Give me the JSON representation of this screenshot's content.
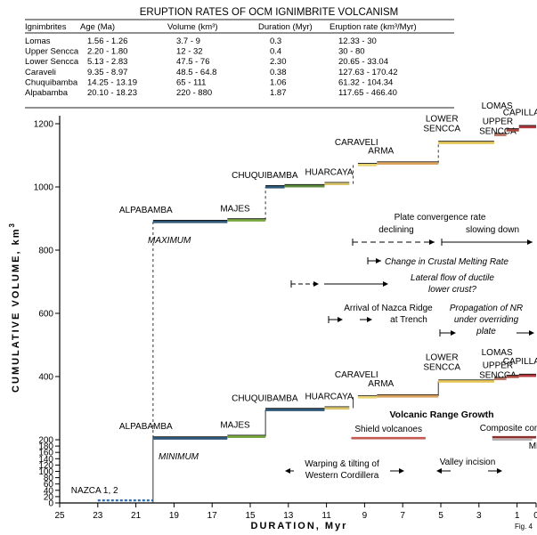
{
  "table": {
    "title": "ERUPTION RATES OF OCM IGNIMBRITE VOLCANISM",
    "headers": [
      "Ignimbrites",
      "Age (Ma)",
      "Volume (km³)",
      "Duration (Myr)",
      "Eruption rate (km³/Myr)"
    ],
    "rows": [
      [
        "Lomas",
        "1.56 - 1.26",
        "3.7 - 9",
        "0.3",
        "12.33 - 30"
      ],
      [
        "Upper Sencca",
        "2.20 - 1.80",
        "12 - 32",
        "0.4",
        "30 - 80"
      ],
      [
        "Lower Sencca",
        "5.13 - 2.83",
        "47.5 - 76",
        "2.30",
        "20.65 - 33.04"
      ],
      [
        "Caraveli",
        "9.35 - 8.97",
        "48.5 - 64.8",
        "0.38",
        "127.63 - 170.42"
      ],
      [
        "Chuquibamba",
        "14.25 - 13.19",
        "65 - 111",
        "1.06",
        "61.32 - 104.34"
      ],
      [
        "Alpabamba",
        "20.10 - 18.23",
        "220 - 880",
        "1.87",
        "117.65 - 466.40"
      ]
    ]
  },
  "chart_data": {
    "type": "line",
    "xlabel": "DURATION, Myr",
    "ylabel": "CUMULATIVE  VOLUME, km",
    "ylabel_sup": "3",
    "xlim": [
      25,
      0
    ],
    "ylim": [
      0,
      1230
    ],
    "x_ticks": [
      25,
      23,
      21,
      19,
      17,
      15,
      13,
      11,
      9,
      7,
      5,
      3,
      1,
      0
    ],
    "y_ticks": [
      0,
      20,
      40,
      60,
      80,
      100,
      120,
      140,
      160,
      180,
      200,
      400,
      600,
      800,
      1000,
      1200
    ],
    "y_scale_note": "axis is expanded below 200 (20 per tick) and compressed above 200 (200 per tick)",
    "series": [
      {
        "name": "MAXIMUM",
        "steps": [
          {
            "x0": 20.1,
            "x1": 16.2,
            "y": 890,
            "color": "#2e5778",
            "label": "ALPABAMBA"
          },
          {
            "x0": 16.2,
            "x1": 14.2,
            "y": 895,
            "color": "#7aa840",
            "label": "MAJES"
          },
          {
            "x0": 14.2,
            "x1": 13.2,
            "y": 1000,
            "color": "#2e5778",
            "label": "CHUQUIBAMBA"
          },
          {
            "x0": 13.2,
            "x1": 11.1,
            "y": 1003,
            "color": "#5e8a3b",
            "label": ""
          },
          {
            "x0": 11.1,
            "x1": 9.8,
            "y": 1010,
            "color": "#d9c46a",
            "label": "HUARCAYA"
          },
          {
            "x0": 9.35,
            "x1": 8.35,
            "y": 1070,
            "color": "#e8d472",
            "label": "CARAVELI"
          },
          {
            "x0": 8.35,
            "x1": 5.13,
            "y": 1075,
            "color": "#d9a25f",
            "label": "ARMA"
          },
          {
            "x0": 5.13,
            "x1": 2.2,
            "y": 1140,
            "color": "#e8c85a",
            "label": "LOWER SENCCA"
          },
          {
            "x0": 2.2,
            "x1": 1.56,
            "y": 1165,
            "color": "#c07c6a",
            "label": "UPPER SENCCA"
          },
          {
            "x0": 1.56,
            "x1": 0.9,
            "y": 1180,
            "color": "#a3453a",
            "label": "LOMAS"
          },
          {
            "x0": 0.9,
            "x1": 0.0,
            "y": 1190,
            "color": "#b23a3f",
            "label": "CAPILLA"
          }
        ]
      },
      {
        "name": "MINIMUM",
        "steps": [
          {
            "x0": 23.0,
            "x1": 20.1,
            "y": 8,
            "color": "#2f6fb5",
            "label": "NAZCA 1, 2"
          },
          {
            "x0": 20.1,
            "x1": 16.2,
            "y": 205,
            "color": "#2e5778",
            "label": "ALPABAMBA"
          },
          {
            "x0": 16.2,
            "x1": 14.2,
            "y": 210,
            "color": "#7aa840",
            "label": "MAJES"
          },
          {
            "x0": 14.2,
            "x1": 11.1,
            "y": 295,
            "color": "#2e5778",
            "label": "CHUQUIBAMBA"
          },
          {
            "x0": 11.1,
            "x1": 9.8,
            "y": 300,
            "color": "#d9c46a",
            "label": "HUARCAYA"
          },
          {
            "x0": 9.35,
            "x1": 8.35,
            "y": 335,
            "color": "#e8d472",
            "label": "CARAVELI"
          },
          {
            "x0": 8.35,
            "x1": 5.13,
            "y": 338,
            "color": "#d9a25f",
            "label": "ARMA"
          },
          {
            "x0": 5.13,
            "x1": 2.2,
            "y": 385,
            "color": "#e8c85a",
            "label": "LOWER SENCCA"
          },
          {
            "x0": 2.2,
            "x1": 1.56,
            "y": 393,
            "color": "#c07c6a",
            "label": "UPPER SENCCA"
          },
          {
            "x0": 1.56,
            "x1": 0.9,
            "y": 400,
            "color": "#a3453a",
            "label": "LOMAS"
          },
          {
            "x0": 0.9,
            "x1": 0.0,
            "y": 403,
            "color": "#b23a3f",
            "label": "CAPILLA"
          }
        ]
      }
    ],
    "risers": [
      {
        "x": 20.1,
        "from": 890,
        "to": 205,
        "dashed": true
      },
      {
        "x": 20.1,
        "from": 205,
        "to": 0,
        "dashed": false
      },
      {
        "x": 14.2,
        "from": 895,
        "to": 1000,
        "dashed": true
      },
      {
        "x": 14.2,
        "from": 210,
        "to": 295,
        "dashed": false
      },
      {
        "x": 9.6,
        "from": 1010,
        "to": 1070,
        "dashed": true
      },
      {
        "x": 9.6,
        "from": 300,
        "to": 335,
        "dashed": false
      },
      {
        "x": 5.13,
        "from": 1075,
        "to": 1140,
        "dashed": true
      },
      {
        "x": 5.13,
        "from": 338,
        "to": 385,
        "dashed": false
      }
    ],
    "extra_lines": [
      {
        "x0": 9.7,
        "x1": 5.8,
        "y": 205,
        "color": "#c35a52",
        "label": "Shield volcanoes"
      },
      {
        "x0": 2.3,
        "x1": 0.0,
        "y": 208,
        "color": "#8c2f2f",
        "label": "Composite cones"
      },
      {
        "x0": 2.3,
        "x1": 0.2,
        "y": 200,
        "color": "#9a9a9a",
        "label": "MF"
      }
    ],
    "annotations": {
      "plate_rate_title": "Plate convergence rate",
      "declining": "declining",
      "slowing": "slowing down",
      "crustal_melting": "Change in Crustal Melting Rate",
      "lateral_flow_1": "Lateral flow of ductile",
      "lateral_flow_2": "lower crust?",
      "nazca_1": "Arrival of Nazca Ridge",
      "nazca_2": "at Trench",
      "propagation_1": "Propagation of NR",
      "propagation_2": "under overriding",
      "propagation_3": "plate",
      "range_growth": "Volcanic Range Growth",
      "warping_1": "Warping & tilting of",
      "warping_2": "Western Cordillera",
      "valley": "Valley incision",
      "fig": "Fig. 4",
      "maximum": "MAXIMUM",
      "minimum": "MINIMUM"
    }
  }
}
